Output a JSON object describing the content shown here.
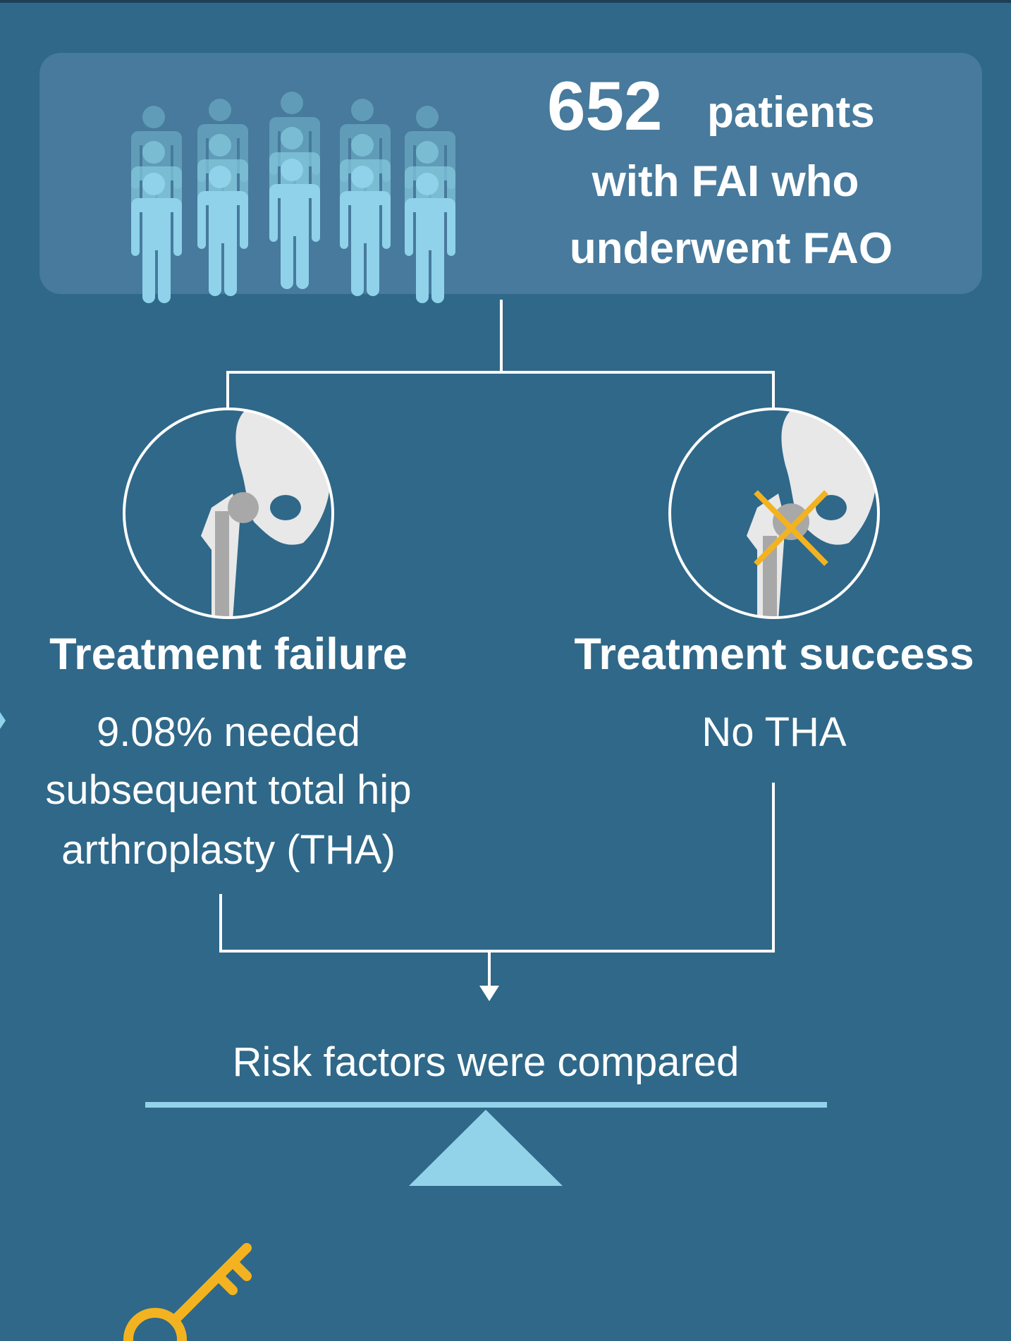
{
  "header": {
    "count": "652",
    "count_unit": "patients",
    "lines": [
      "with FAI who",
      "underwent FAO"
    ]
  },
  "branches": [
    {
      "title": "Treatment failure",
      "lines": [
        "9.08% needed",
        "subsequent total hip",
        "arthroplasty (THA)"
      ]
    },
    {
      "title": "Treatment success",
      "lines": [
        "No THA"
      ]
    }
  ],
  "result": "Risk factors were compared"
}
